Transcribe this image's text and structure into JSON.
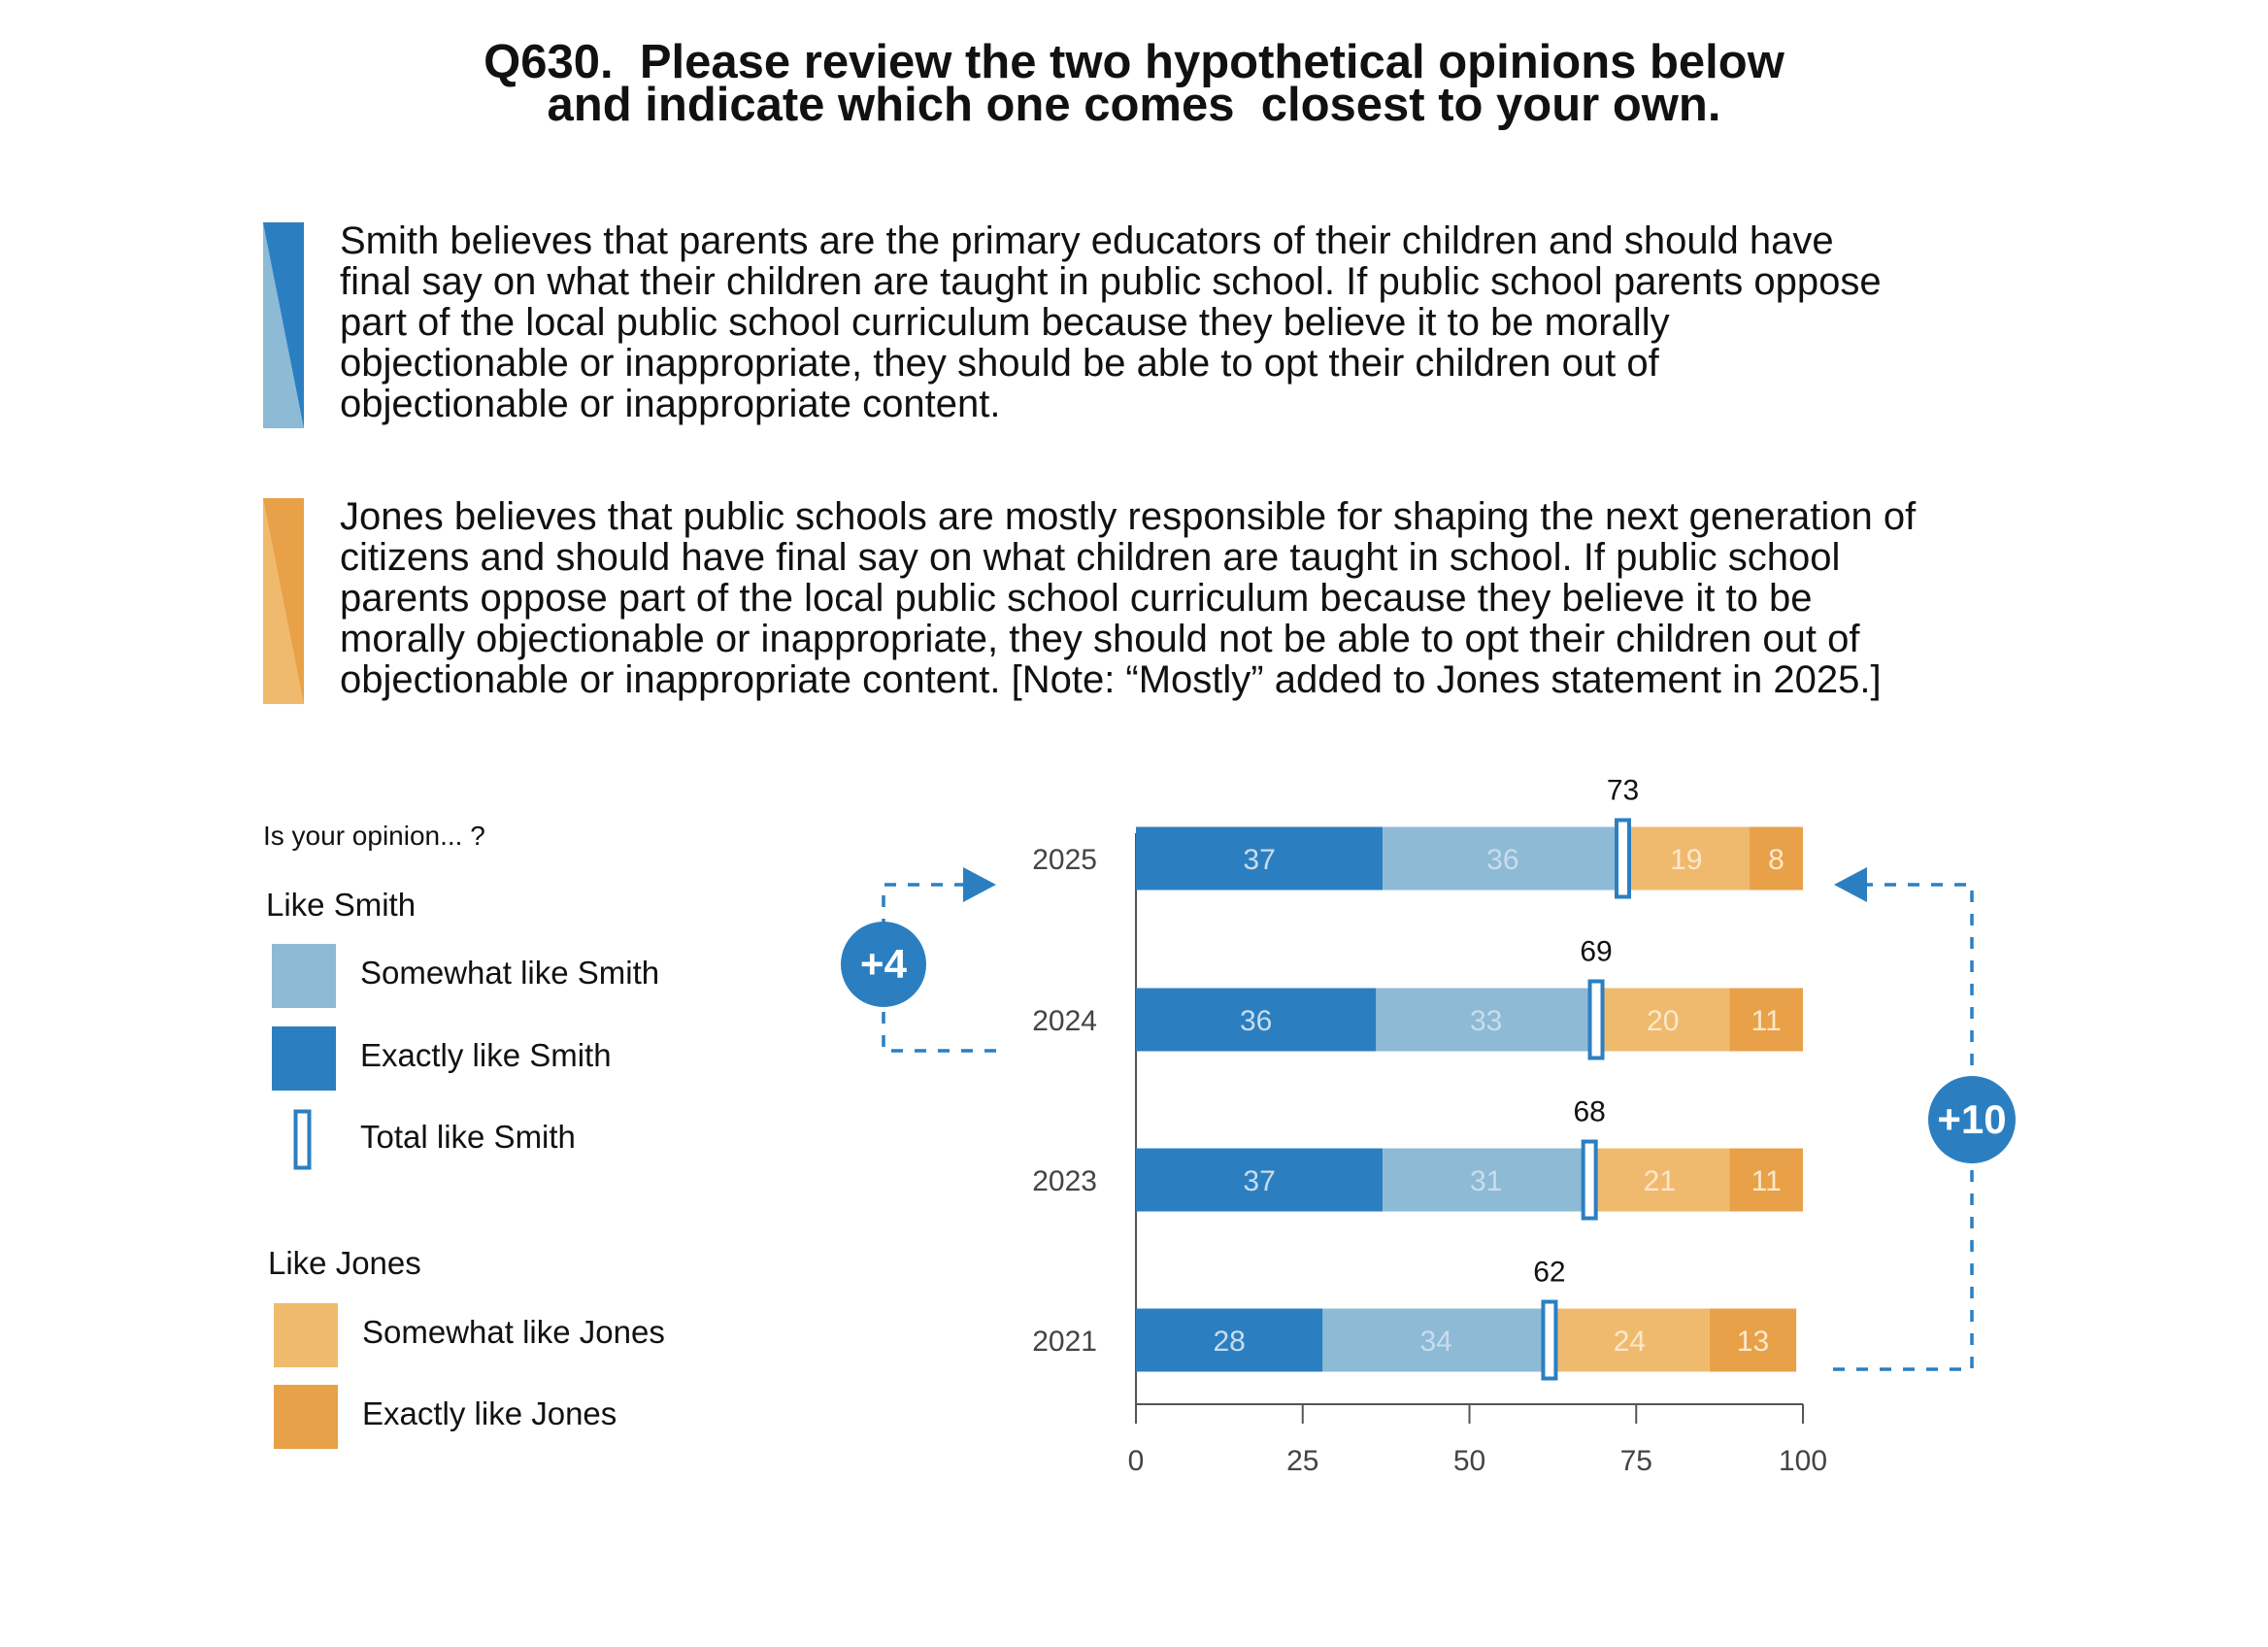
{
  "title": {
    "line1": "Q630.  Please review the two hypothetical opinions below",
    "line2": "and indicate which one comes  closest to your own."
  },
  "statements": {
    "smith": [
      "Smith believes that parents are the primary educators of their children and should have",
      "final say on what their children are taught in public school. If public school parents oppose",
      "part of the local public school curriculum because they believe it to be morally",
      "objectionable or inappropriate, they should be able to opt their children out of",
      "objectionable or inappropriate content."
    ],
    "jones": [
      "Jones believes that public schools are mostly responsible for shaping the next generation of",
      "citizens and should have final say on what children are taught in school. If public school",
      "parents oppose part of the local public school curriculum because they believe it to be",
      "morally objectionable or inappropriate, they should not be able to opt their children out of",
      "objectionable or inappropriate content.   [Note: “Mostly” added to Jones statement in 2025.]"
    ]
  },
  "legend": {
    "question": "Is your opinion... ?",
    "smith_group": "Like Smith",
    "somewhat_smith": "Somewhat like Smith",
    "exactly_smith": "Exactly like Smith",
    "total_smith": "Total like Smith",
    "jones_group": "Like Jones",
    "somewhat_jones": "Somewhat like Jones",
    "exactly_jones": "Exactly like Jones"
  },
  "colors": {
    "exactly_smith": "#2b7fc1",
    "somewhat_smith": "#8dbad5",
    "somewhat_jones": "#f0ba6e",
    "exactly_jones": "#e8a148",
    "bar_label_smith": "#c9dcec",
    "bar_label_jones": "#fbe8cc",
    "axis": "#555555"
  },
  "chart_data": {
    "type": "bar",
    "orientation": "horizontal",
    "stacked": true,
    "categories": [
      "2025",
      "2024",
      "2023",
      "2021"
    ],
    "series": [
      {
        "name": "Exactly like Smith",
        "values": [
          37,
          36,
          37,
          28
        ]
      },
      {
        "name": "Somewhat like Smith",
        "values": [
          36,
          33,
          31,
          34
        ]
      },
      {
        "name": "Somewhat like Jones",
        "values": [
          19,
          20,
          21,
          24
        ]
      },
      {
        "name": "Exactly like Jones",
        "values": [
          8,
          11,
          11,
          13
        ]
      }
    ],
    "totals": {
      "name": "Total like Smith",
      "values": [
        73,
        69,
        68,
        62
      ]
    },
    "xlim": [
      0,
      100
    ],
    "xticks": [
      0,
      25,
      50,
      75,
      100
    ],
    "annotations": [
      {
        "label": "+4",
        "from": "2024",
        "to": "2025",
        "side": "left"
      },
      {
        "label": "+10",
        "from": "2021",
        "to": "2025",
        "side": "right"
      }
    ]
  }
}
